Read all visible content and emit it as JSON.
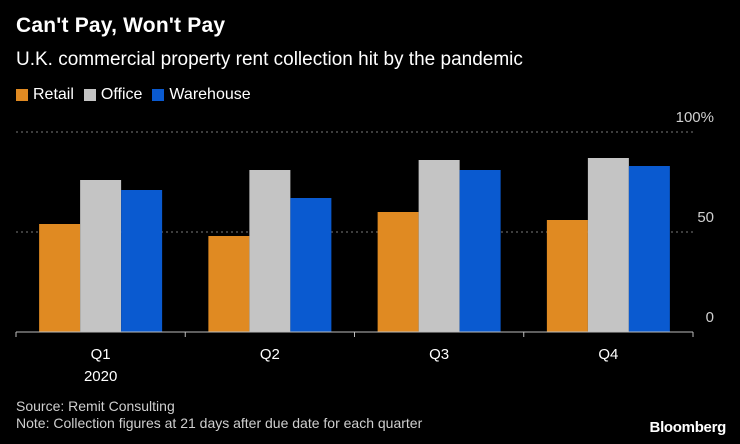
{
  "header": {
    "title": "Can't Pay, Won't Pay",
    "subtitle": "U.K. commercial property rent collection hit by the pandemic"
  },
  "legend": [
    {
      "label": "Retail",
      "color": "#e08a22"
    },
    {
      "label": "Office",
      "color": "#c4c4c4"
    },
    {
      "label": "Warehouse",
      "color": "#0a5ad0"
    }
  ],
  "chart_data": {
    "type": "bar",
    "title": "Can't Pay, Won't Pay",
    "subtitle": "U.K. commercial property rent collection hit by the pandemic",
    "categories": [
      "Q1",
      "Q2",
      "Q3",
      "Q4"
    ],
    "category_sublabels": [
      "2020",
      "",
      "",
      ""
    ],
    "series": [
      {
        "name": "Retail",
        "color": "#e08a22",
        "values": [
          54,
          48,
          60,
          56
        ]
      },
      {
        "name": "Office",
        "color": "#c4c4c4",
        "values": [
          76,
          81,
          86,
          87
        ]
      },
      {
        "name": "Warehouse",
        "color": "#0a5ad0",
        "values": [
          71,
          67,
          81,
          83
        ]
      }
    ],
    "y_ticks": [
      {
        "value": 100,
        "label": "100%"
      },
      {
        "value": 50,
        "label": "50"
      },
      {
        "value": 0,
        "label": "0"
      }
    ],
    "ylim": [
      0,
      100
    ],
    "xlabel": "",
    "ylabel": "",
    "grid": true,
    "legend_position": "top-left"
  },
  "footer": {
    "source": "Source: Remit Consulting",
    "note": "Note: Collection figures at 21 days after due date for each quarter"
  },
  "brand": "Bloomberg"
}
